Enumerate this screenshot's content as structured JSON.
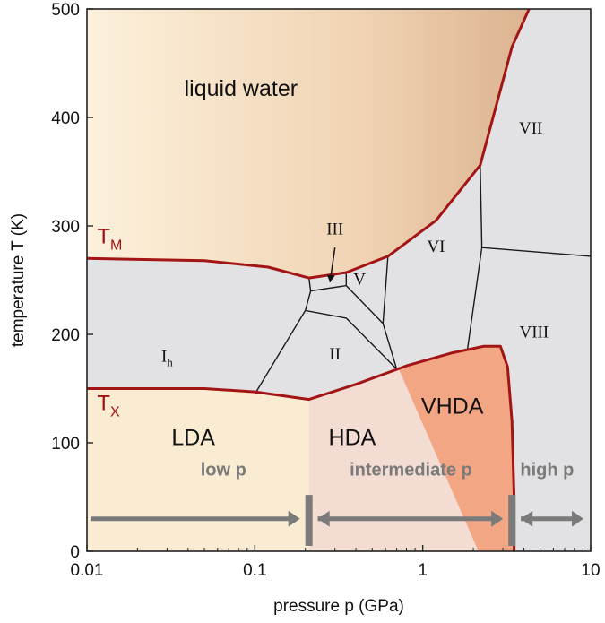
{
  "chart_data": {
    "type": "phase-diagram",
    "x_scale": "log",
    "xlim": [
      0.01,
      10
    ],
    "ylim": [
      0,
      500
    ],
    "x_ticks": [
      {
        "value": 0.01,
        "label": "0.01"
      },
      {
        "value": 0.1,
        "label": "0.1"
      },
      {
        "value": 1,
        "label": "1"
      },
      {
        "value": 10,
        "label": "10"
      }
    ],
    "y_ticks": [
      {
        "value": 0,
        "label": "0"
      },
      {
        "value": 100,
        "label": "100"
      },
      {
        "value": 200,
        "label": "200"
      },
      {
        "value": 300,
        "label": "300"
      },
      {
        "value": 400,
        "label": "400"
      },
      {
        "value": 500,
        "label": "500"
      }
    ],
    "xlabel": "pressure p  (GPa)",
    "ylabel": "temperature  T  (K)",
    "colors": {
      "curve": "#a31515",
      "boundary": "#1a1a1a",
      "crystal_fill": "#e2e2e4",
      "liquid_light": "#fbefd9",
      "liquid_dark": "#d9ad8a",
      "lda_fill": "#f9ecd2",
      "hda_fill": "#f3dcd2",
      "vhda_fill": "#f2a683",
      "arrow": "#7a7a7a"
    },
    "curves": [
      {
        "name": "T_M",
        "label": "T",
        "subscript": "M",
        "points": [
          [
            0.01,
            270
          ],
          [
            0.05,
            268
          ],
          [
            0.12,
            262
          ],
          [
            0.21,
            252
          ],
          [
            0.35,
            257
          ],
          [
            0.62,
            272
          ],
          [
            1.2,
            305
          ],
          [
            2.2,
            356
          ],
          [
            3.4,
            465
          ],
          [
            4.3,
            500
          ]
        ]
      },
      {
        "name": "T_X",
        "label": "T",
        "subscript": "X",
        "points": [
          [
            0.01,
            150
          ],
          [
            0.05,
            150
          ],
          [
            0.1,
            147
          ],
          [
            0.21,
            140
          ],
          [
            0.4,
            154
          ],
          [
            0.8,
            171
          ],
          [
            1.5,
            183
          ],
          [
            2.3,
            189
          ],
          [
            2.9,
            189
          ],
          [
            3.2,
            170
          ],
          [
            3.4,
            120
          ],
          [
            3.5,
            50
          ],
          [
            3.5,
            0
          ]
        ]
      }
    ],
    "phase_boundaries": [
      [
        [
          0.1,
          145
        ],
        [
          0.2,
          222
        ],
        [
          0.35,
          215
        ],
        [
          0.7,
          168
        ]
      ],
      [
        [
          0.21,
          252
        ],
        [
          0.215,
          240
        ],
        [
          0.2,
          222
        ]
      ],
      [
        [
          0.35,
          257
        ],
        [
          0.35,
          245
        ],
        [
          0.215,
          240
        ]
      ],
      [
        [
          0.35,
          245
        ],
        [
          0.58,
          210
        ],
        [
          0.62,
          272
        ]
      ],
      [
        [
          0.58,
          210
        ],
        [
          0.7,
          168
        ]
      ],
      [
        [
          2.2,
          356
        ],
        [
          2.25,
          280
        ],
        [
          10,
          272
        ]
      ],
      [
        [
          2.25,
          280
        ],
        [
          1.85,
          187
        ]
      ]
    ],
    "regions": [
      {
        "label": "liquid  water",
        "p": 0.038,
        "T": 420,
        "style": "big"
      },
      {
        "label": "I",
        "subscript": "h",
        "p": 0.03,
        "T": 175,
        "style": "small"
      },
      {
        "label": "II",
        "p": 0.3,
        "T": 177,
        "style": "small"
      },
      {
        "label": "III",
        "p": 0.3,
        "T": 292,
        "style": "small"
      },
      {
        "label": "V",
        "p": 0.42,
        "T": 246,
        "style": "small"
      },
      {
        "label": "VI",
        "p": 1.2,
        "T": 276,
        "style": "small"
      },
      {
        "label": "VII",
        "p": 4.4,
        "T": 385,
        "style": "small"
      },
      {
        "label": "VIII",
        "p": 4.6,
        "T": 197,
        "style": "small"
      },
      {
        "label": "LDA",
        "p": 0.043,
        "T": 98,
        "style": "big"
      },
      {
        "label": "HDA",
        "p": 0.38,
        "T": 98,
        "style": "big"
      },
      {
        "label": "VHDA",
        "p": 1.5,
        "T": 127,
        "style": "big"
      }
    ],
    "arrow_annotation": {
      "from": [
        0.3,
        280
      ],
      "to": [
        0.28,
        248
      ]
    },
    "pressure_ranges": [
      {
        "label": "low p",
        "from": 0.01,
        "to": 0.21,
        "label_at": 0.065
      },
      {
        "label": "intermediate p",
        "from": 0.21,
        "to": 3.4,
        "label_at": 0.85
      },
      {
        "label": "high p",
        "from": 3.4,
        "to": 10,
        "label_at": 5.5
      }
    ]
  }
}
